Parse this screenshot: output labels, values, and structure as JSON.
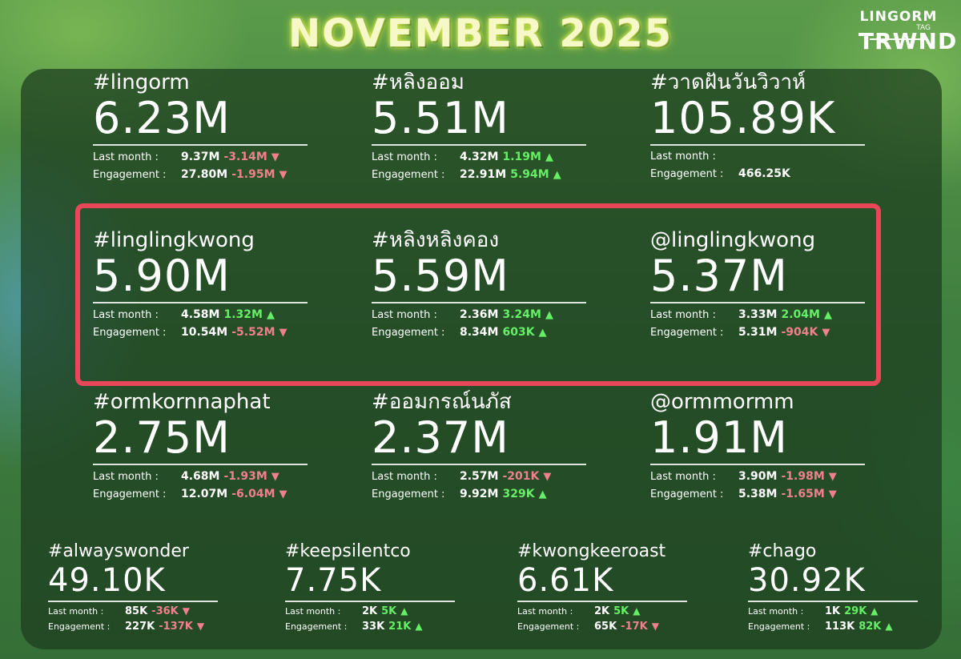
{
  "header": {
    "title": "NOVEMBER 2025"
  },
  "logo": {
    "line1": "LINGORM",
    "tag": "TAG",
    "line2": "TRWND"
  },
  "labels": {
    "last_month": "Last month :",
    "engagement": "Engagement :"
  },
  "cards": [
    {
      "tag": "#lingorm",
      "value": "6.23M",
      "last_month": "9.37M",
      "last_change": "-3.14M",
      "last_dir": "down",
      "engagement": "27.80M",
      "eng_change": "-1.95M",
      "eng_dir": "down"
    },
    {
      "tag": "#หลิงออม",
      "value": "5.51M",
      "last_month": "4.32M",
      "last_change": "1.19M",
      "last_dir": "up",
      "engagement": "22.91M",
      "eng_change": "5.94M",
      "eng_dir": "up"
    },
    {
      "tag": "#วาดฝันวันวิวาห์",
      "value": "105.89K",
      "last_month": "",
      "last_change": "",
      "last_dir": "",
      "engagement": "466.25K",
      "eng_change": "",
      "eng_dir": ""
    },
    {
      "tag": "#linglingkwong",
      "value": "5.90M",
      "last_month": "4.58M",
      "last_change": "1.32M",
      "last_dir": "up",
      "engagement": "10.54M",
      "eng_change": "-5.52M",
      "eng_dir": "down"
    },
    {
      "tag": "#หลิงหลิงคอง",
      "value": "5.59M",
      "last_month": "2.36M",
      "last_change": "3.24M",
      "last_dir": "up",
      "engagement": "8.34M",
      "eng_change": "603K",
      "eng_dir": "up"
    },
    {
      "tag": "@linglingkwong",
      "value": "5.37M",
      "last_month": "3.33M",
      "last_change": "2.04M",
      "last_dir": "up",
      "engagement": "5.31M",
      "eng_change": "-904K",
      "eng_dir": "down"
    },
    {
      "tag": "#ormkornnaphat",
      "value": "2.75M",
      "last_month": "4.68M",
      "last_change": "-1.93M",
      "last_dir": "down",
      "engagement": "12.07M",
      "eng_change": "-6.04M",
      "eng_dir": "down"
    },
    {
      "tag": "#ออมกรณ์นภัส",
      "value": "2.37M",
      "last_month": "2.57M",
      "last_change": "-201K",
      "last_dir": "down",
      "engagement": "9.92M",
      "eng_change": "329K",
      "eng_dir": "up"
    },
    {
      "tag": "@ormmormm",
      "value": "1.91M",
      "last_month": "3.90M",
      "last_change": "-1.98M",
      "last_dir": "down",
      "engagement": "5.38M",
      "eng_change": "-1.65M",
      "eng_dir": "down"
    },
    {
      "tag": "#alwayswonder",
      "value": "49.10K",
      "last_month": "85K",
      "last_change": "-36K",
      "last_dir": "down",
      "engagement": "227K",
      "eng_change": "-137K",
      "eng_dir": "down"
    },
    {
      "tag": "#keepsilentco",
      "value": "7.75K",
      "last_month": "2K",
      "last_change": "5K",
      "last_dir": "up",
      "engagement": "33K",
      "eng_change": "21K",
      "eng_dir": "up"
    },
    {
      "tag": "#kwongkeeroast",
      "value": "6.61K",
      "last_month": "2K",
      "last_change": "5K",
      "last_dir": "up",
      "engagement": "65K",
      "eng_change": "-17K",
      "eng_dir": "down"
    },
    {
      "tag": "#chago",
      "value": "30.92K",
      "last_month": "1K",
      "last_change": "29K",
      "last_dir": "up",
      "engagement": "113K",
      "eng_change": "82K",
      "eng_dir": "up"
    }
  ],
  "colors": {
    "up": "#66ee66",
    "down": "#f0808c",
    "highlight_border": "#e8475a",
    "title": "#f6f8c8"
  }
}
